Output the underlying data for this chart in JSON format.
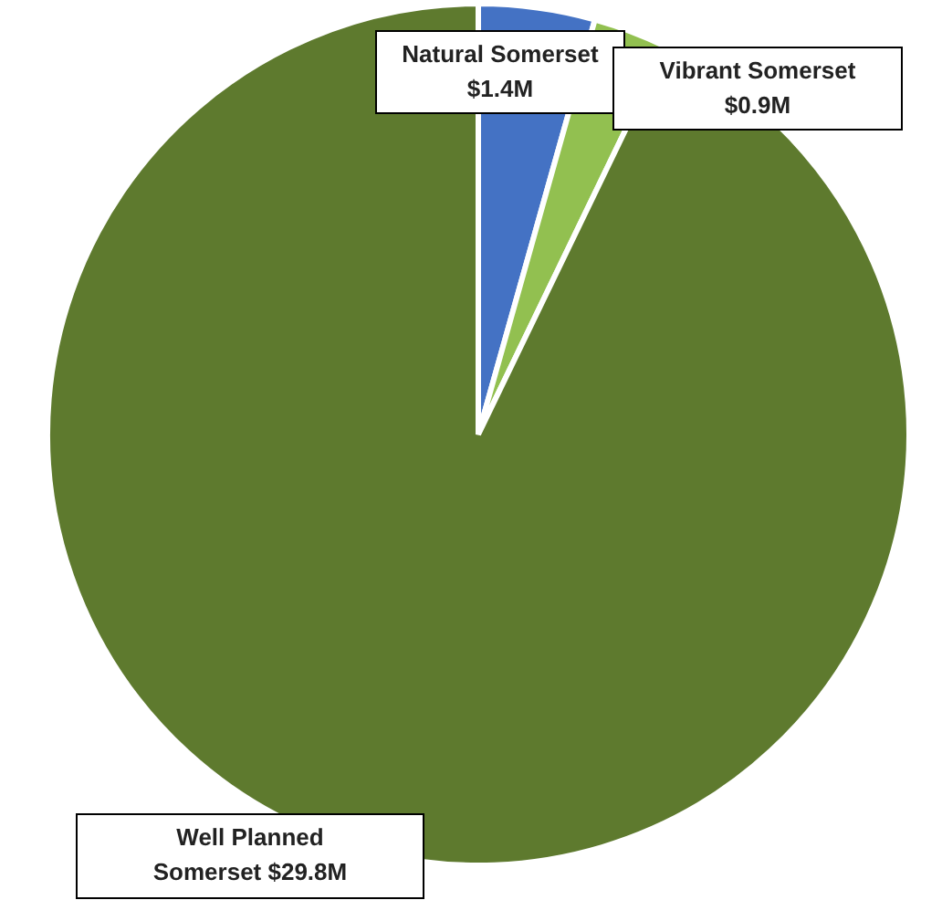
{
  "chart_data": {
    "type": "pie",
    "categories": [
      "Natural Somerset",
      "Vibrant Somerset",
      "Well Planned Somerset"
    ],
    "values": [
      1.4,
      0.9,
      29.8
    ],
    "colors": [
      "#4472c4",
      "#92c050",
      "#5e7a2e"
    ],
    "value_labels": [
      "$1.4M",
      "$0.9M",
      "$29.8M"
    ]
  }
}
